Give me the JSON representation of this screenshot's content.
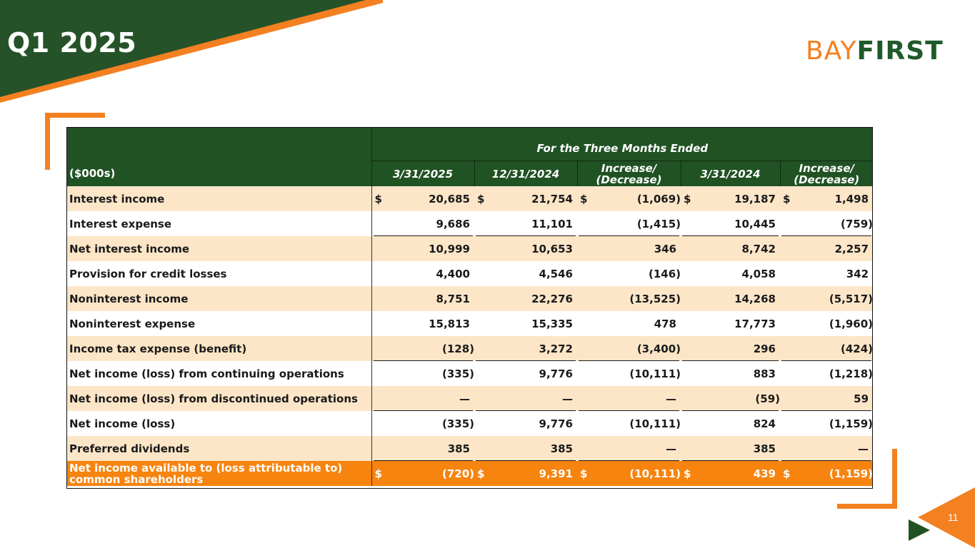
{
  "slide": {
    "title": "Q1 2025",
    "page_number": "11",
    "logo": {
      "part1": "BAY",
      "part2": "FIRST"
    },
    "colors": {
      "dark_green": "#215224",
      "orange": "#f38021",
      "row_shade": "#fde6c8",
      "highlight_row": "#f6840f"
    }
  },
  "table": {
    "units_label": "($000s)",
    "period_header": "For the Three Months Ended",
    "columns": [
      {
        "line1": "",
        "line2": "3/31/2025"
      },
      {
        "line1": "",
        "line2": "12/31/2024"
      },
      {
        "line1": "Increase/",
        "line2": "(Decrease)"
      },
      {
        "line1": "",
        "line2": "3/31/2024"
      },
      {
        "line1": "Increase/",
        "line2": "(Decrease)"
      }
    ],
    "rows": [
      {
        "label": "Interest income",
        "dollar": true,
        "values": [
          "20,685",
          "21,754",
          "(1,069)",
          "19,187",
          "1,498"
        ]
      },
      {
        "label": "Interest expense",
        "dollar": false,
        "values": [
          "9,686",
          "11,101",
          "(1,415)",
          "10,445",
          "(759)"
        ]
      },
      {
        "label": "Net interest income",
        "dollar": false,
        "values": [
          "10,999",
          "10,653",
          "346",
          "8,742",
          "2,257"
        ]
      },
      {
        "label": "Provision for credit losses",
        "dollar": false,
        "values": [
          "4,400",
          "4,546",
          "(146)",
          "4,058",
          "342"
        ]
      },
      {
        "label": "Noninterest income",
        "dollar": false,
        "values": [
          "8,751",
          "22,276",
          "(13,525)",
          "14,268",
          "(5,517)"
        ]
      },
      {
        "label": "Noninterest expense",
        "dollar": false,
        "values": [
          "15,813",
          "15,335",
          "478",
          "17,773",
          "(1,960)"
        ]
      },
      {
        "label": "Income tax expense (benefit)",
        "dollar": false,
        "values": [
          "(128)",
          "3,272",
          "(3,400)",
          "296",
          "(424)"
        ]
      },
      {
        "label": "Net income (loss) from continuing operations",
        "dollar": false,
        "values": [
          "(335)",
          "9,776",
          "(10,111)",
          "883",
          "(1,218)"
        ]
      },
      {
        "label": "Net income (loss) from discontinued operations",
        "dollar": false,
        "values": [
          "—",
          "—",
          "—",
          "(59)",
          "59"
        ]
      },
      {
        "label": "Net income (loss)",
        "dollar": false,
        "values": [
          "(335)",
          "9,776",
          "(10,111)",
          "824",
          "(1,159)"
        ]
      },
      {
        "label": "Preferred dividends",
        "dollar": false,
        "values": [
          "385",
          "385",
          "—",
          "385",
          "—"
        ]
      },
      {
        "label": "Net income available to (loss attributable to) common shareholders",
        "dollar": true,
        "values": [
          "(720)",
          "9,391",
          "(10,111)",
          "439",
          "(1,159)"
        ]
      }
    ],
    "currency_symbol": "$"
  }
}
